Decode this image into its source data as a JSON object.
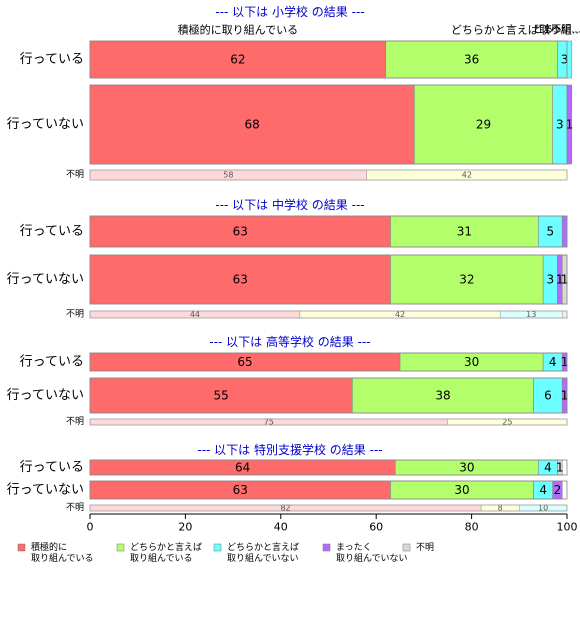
{
  "chart_data": {
    "type": "bar",
    "orientation": "horizontal-stacked-100",
    "xlim": [
      0,
      100
    ],
    "x_ticks": [
      "0",
      "20",
      "40",
      "60",
      "80",
      "100"
    ],
    "top_labels": [
      "積極的に取り組んでいる",
      "どちらかと言えば取り組...",
      "どち...",
      "まっ...",
      "不明..."
    ],
    "legend": {
      "placement": "bottom-left",
      "entries": [
        {
          "label": "積極的に\n取り組んでいる",
          "color": "#ff6b6b"
        },
        {
          "label": "どちらかと言えば\n取り組んでいる",
          "color": "#b3ff6b"
        },
        {
          "label": "どちらかと言えば\n取り組んでいない",
          "color": "#6bffff"
        },
        {
          "label": "まったく\n取り組んでいない",
          "color": "#b36bff"
        },
        {
          "label": "不明",
          "color": "#d9d9d9"
        }
      ]
    },
    "unknown_palette": [
      "#ffd9d9",
      "#ffffd9",
      "#d9ffff",
      "#ecd9ff",
      "#f0f0f0"
    ],
    "panels": [
      {
        "title": "--- 以下は 小学校 の結果 ---",
        "rows": [
          {
            "label": "行っている",
            "values": [
              62,
              36,
              3,
              0,
              0
            ],
            "labels": [
              "62",
              "36",
              "3",
              "",
              ""
            ]
          },
          {
            "label": "行っていない",
            "values": [
              68,
              29,
              3,
              1,
              0
            ],
            "labels": [
              "68",
              "29",
              "3",
              "1",
              ""
            ]
          }
        ],
        "unknown": {
          "label": "不明",
          "values": [
            58,
            42,
            0,
            0,
            0
          ],
          "labels": [
            "58",
            "42",
            "",
            "",
            ""
          ]
        }
      },
      {
        "title": "--- 以下は 中学校 の結果 ---",
        "rows": [
          {
            "label": "行っている",
            "values": [
              63,
              31,
              5,
              1,
              0
            ],
            "labels": [
              "63",
              "31",
              "5",
              "",
              ""
            ]
          },
          {
            "label": "行っていない",
            "values": [
              63,
              32,
              3,
              1,
              1
            ],
            "labels": [
              "63",
              "32",
              "3",
              "1",
              "1"
            ]
          }
        ],
        "unknown": {
          "label": "不明",
          "values": [
            44,
            42,
            13,
            0,
            1
          ],
          "labels": [
            "44",
            "42",
            "13",
            "",
            ""
          ]
        }
      },
      {
        "title": "--- 以下は 高等学校 の結果 ---",
        "rows": [
          {
            "label": "行っている",
            "values": [
              65,
              30,
              4,
              1,
              0
            ],
            "labels": [
              "65",
              "30",
              "4",
              "1",
              ""
            ]
          },
          {
            "label": "行っていない",
            "values": [
              55,
              38,
              6,
              1,
              0
            ],
            "labels": [
              "55",
              "38",
              "6",
              "1",
              ""
            ]
          }
        ],
        "unknown": {
          "label": "不明",
          "values": [
            75,
            25,
            0,
            0,
            0
          ],
          "labels": [
            "75",
            "25",
            "",
            "",
            ""
          ]
        }
      },
      {
        "title": "--- 以下は 特別支援学校 の結果 ---",
        "rows": [
          {
            "label": "行っている",
            "values": [
              64,
              30,
              4,
              0,
              1
            ],
            "labels": [
              "64",
              "30",
              "4",
              "",
              "1"
            ]
          },
          {
            "label": "行っていない",
            "values": [
              63,
              30,
              4,
              2,
              0
            ],
            "labels": [
              "63",
              "30",
              "4",
              "2",
              ""
            ]
          }
        ],
        "unknown": {
          "label": "不明",
          "values": [
            82,
            8,
            10,
            0,
            0
          ],
          "labels": [
            "82",
            "8",
            "10",
            "",
            ""
          ]
        }
      }
    ]
  }
}
